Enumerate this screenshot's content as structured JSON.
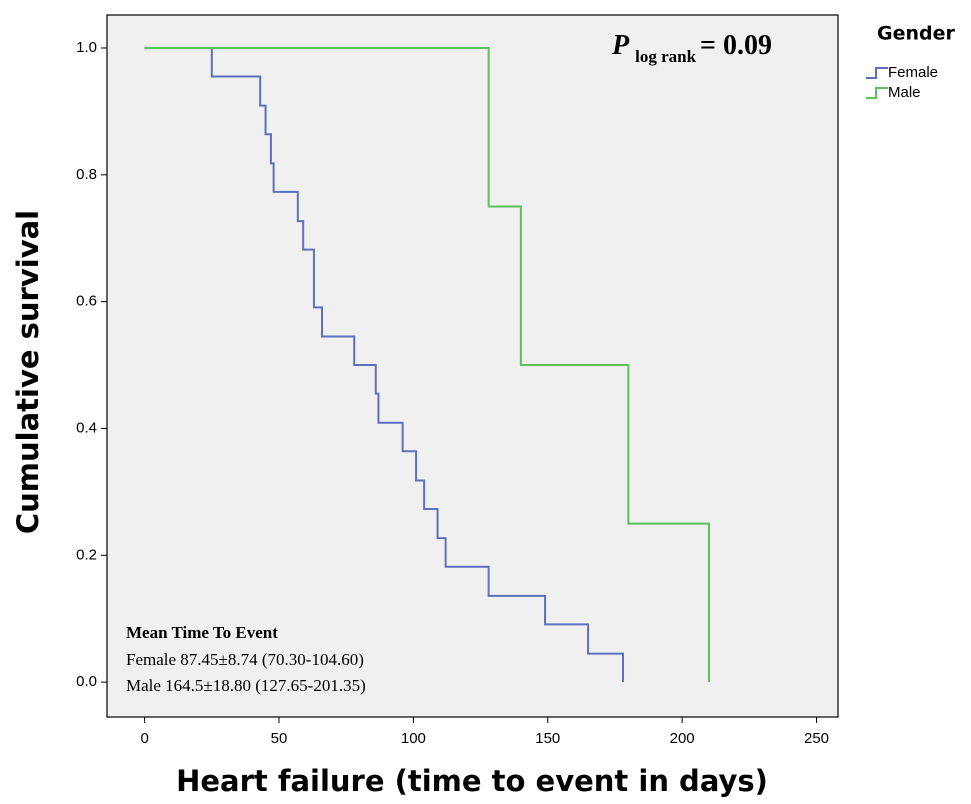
{
  "chart_data": {
    "type": "step",
    "x_label": "Heart failure (time to event in days)",
    "y_label": "Cumulative survival",
    "annotation": {
      "symbol": "P",
      "subscript": "log rank",
      "value": "= 0.09"
    },
    "legend_title": "Gender",
    "legend": "outside-right-top",
    "note_title": "Mean Time To Event",
    "notes": [
      "Female 87.45±8.74 (70.30-104.60)",
      "Male 164.5±18.80 (127.65-201.35)"
    ],
    "xlim": [
      -14,
      258
    ],
    "ylim": [
      -0.055,
      1.052
    ],
    "xticks": [
      0,
      50,
      100,
      150,
      200,
      250
    ],
    "yticks": [
      {
        "value": 0,
        "label": "0.0"
      },
      {
        "value": 0.2,
        "label": "0.2"
      },
      {
        "value": 0.4,
        "label": "0.4"
      },
      {
        "value": 0.6,
        "label": "0.6"
      },
      {
        "value": 0.8,
        "label": "0.8"
      },
      {
        "value": 1,
        "label": "1.0"
      }
    ],
    "background": "#f0f0f0",
    "series": [
      {
        "name": "Female",
        "color": "#5f6fbf",
        "x": [
          0,
          25,
          43,
          45,
          47,
          48,
          57,
          59,
          63,
          66,
          78,
          86,
          87,
          96,
          101,
          104,
          109,
          112,
          128,
          149,
          165,
          178
        ],
        "values": [
          1,
          0.955,
          0.909,
          0.864,
          0.818,
          0.773,
          0.727,
          0.682,
          0.591,
          0.545,
          0.5,
          0.455,
          0.409,
          0.364,
          0.318,
          0.273,
          0.227,
          0.182,
          0.136,
          0.091,
          0.045,
          0
        ]
      },
      {
        "name": "Male",
        "color": "#5cc05c",
        "x": [
          0,
          128,
          140,
          180,
          210
        ],
        "values": [
          1,
          0.75,
          0.5,
          0.25,
          0
        ]
      }
    ]
  }
}
